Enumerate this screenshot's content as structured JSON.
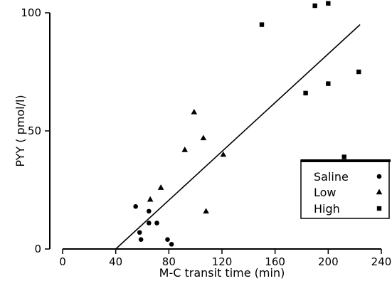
{
  "chart_data": {
    "type": "scatter",
    "title": "",
    "xlabel": "M-C transit time (min)",
    "ylabel": "PYY  ( pmol/l)",
    "xlim": [
      0,
      240
    ],
    "ylim": [
      0,
      105
    ],
    "xticks": [
      0,
      40,
      80,
      120,
      160,
      200,
      240
    ],
    "yticks": [
      0,
      50,
      100
    ],
    "grid": false,
    "legend_position": "bottom-right",
    "series": [
      {
        "name": "Saline",
        "marker": "circle",
        "points": [
          [
            55,
            18
          ],
          [
            58,
            7
          ],
          [
            59,
            4
          ],
          [
            65,
            16
          ],
          [
            65,
            11
          ],
          [
            71,
            11
          ],
          [
            79,
            4
          ],
          [
            82,
            2
          ]
        ]
      },
      {
        "name": "Low",
        "marker": "triangle",
        "points": [
          [
            66,
            21
          ],
          [
            74,
            26
          ],
          [
            92,
            42
          ],
          [
            99,
            58
          ],
          [
            106,
            47
          ],
          [
            108,
            16
          ],
          [
            121,
            40
          ]
        ]
      },
      {
        "name": "High",
        "marker": "square",
        "points": [
          [
            150,
            95
          ],
          [
            183,
            66
          ],
          [
            190,
            103
          ],
          [
            200,
            104
          ],
          [
            200,
            70
          ],
          [
            212,
            39
          ],
          [
            223,
            75
          ]
        ]
      }
    ],
    "regression_line": {
      "x": [
        40,
        224
      ],
      "y": [
        0,
        95
      ]
    }
  }
}
